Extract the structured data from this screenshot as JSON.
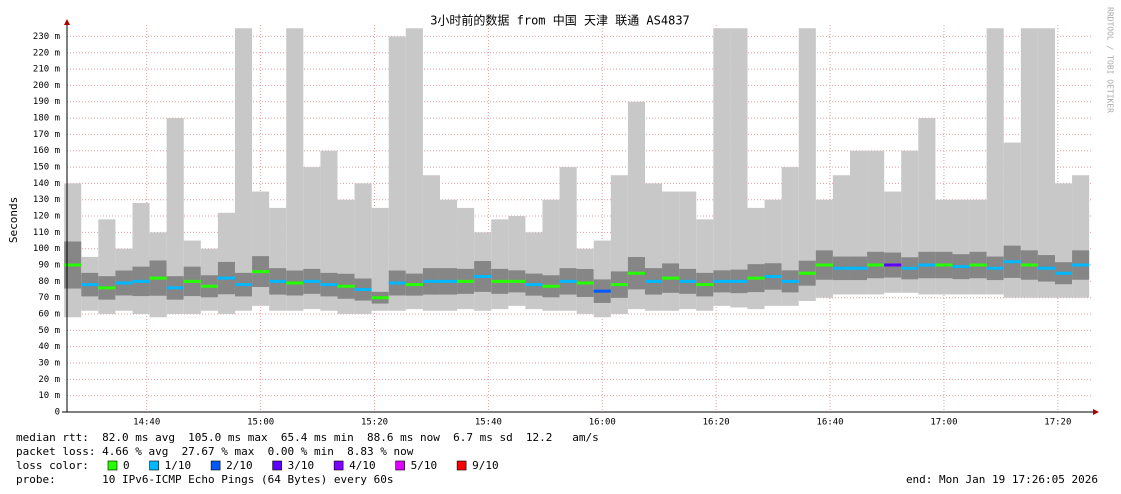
{
  "chart_data": {
    "type": "smoke",
    "title": "3小时前的数据 from 中国 天津 联通 AS4837",
    "y_label": "Seconds",
    "watermark": "RRDTOOL / TOBI OETIKER",
    "ylim": [
      0,
      0.237
    ],
    "yticks": [
      {
        "value": 0,
        "label": "0"
      },
      {
        "value": 0.01,
        "label": "10 m"
      },
      {
        "value": 0.02,
        "label": "20 m"
      },
      {
        "value": 0.03,
        "label": "30 m"
      },
      {
        "value": 0.04,
        "label": "40 m"
      },
      {
        "value": 0.05,
        "label": "50 m"
      },
      {
        "value": 0.06,
        "label": "60 m"
      },
      {
        "value": 0.07,
        "label": "70 m"
      },
      {
        "value": 0.08,
        "label": "80 m"
      },
      {
        "value": 0.09,
        "label": "90 m"
      },
      {
        "value": 0.1,
        "label": "100 m"
      },
      {
        "value": 0.11,
        "label": "110 m"
      },
      {
        "value": 0.12,
        "label": "120 m"
      },
      {
        "value": 0.13,
        "label": "130 m"
      },
      {
        "value": 0.14,
        "label": "140 m"
      },
      {
        "value": 0.15,
        "label": "150 m"
      },
      {
        "value": 0.16,
        "label": "160 m"
      },
      {
        "value": 0.17,
        "label": "170 m"
      },
      {
        "value": 0.18,
        "label": "180 m"
      },
      {
        "value": 0.19,
        "label": "190 m"
      },
      {
        "value": 0.2,
        "label": "200 m"
      },
      {
        "value": 0.21,
        "label": "210 m"
      },
      {
        "value": 0.22,
        "label": "220 m"
      },
      {
        "value": 0.23,
        "label": "230 m"
      }
    ],
    "xlim": [
      "14:26",
      "17:26"
    ],
    "xticks": [
      "14:40",
      "15:00",
      "15:20",
      "15:40",
      "16:00",
      "16:20",
      "16:40",
      "17:00",
      "17:20"
    ],
    "grid": true,
    "x": [
      "14:27",
      "14:30",
      "14:33",
      "14:36",
      "14:39",
      "14:42",
      "14:45",
      "14:48",
      "14:51",
      "14:54",
      "14:57",
      "15:00",
      "15:03",
      "15:06",
      "15:09",
      "15:12",
      "15:15",
      "15:18",
      "15:21",
      "15:24",
      "15:27",
      "15:30",
      "15:33",
      "15:36",
      "15:39",
      "15:42",
      "15:45",
      "15:48",
      "15:51",
      "15:54",
      "15:57",
      "16:00",
      "16:03",
      "16:06",
      "16:09",
      "16:12",
      "16:15",
      "16:18",
      "16:21",
      "16:24",
      "16:27",
      "16:30",
      "16:33",
      "16:36",
      "16:39",
      "16:42",
      "16:45",
      "16:48",
      "16:51",
      "16:54",
      "16:57",
      "17:00",
      "17:03",
      "17:06",
      "17:09",
      "17:12",
      "17:15",
      "17:18",
      "17:21",
      "17:24"
    ],
    "median": [
      0.09,
      0.078,
      0.076,
      0.079,
      0.08,
      0.082,
      0.076,
      0.08,
      0.077,
      0.082,
      0.078,
      0.086,
      0.08,
      0.079,
      0.08,
      0.078,
      0.077,
      0.075,
      0.07,
      0.079,
      0.078,
      0.08,
      0.08,
      0.08,
      0.083,
      0.08,
      0.08,
      0.078,
      0.077,
      0.08,
      0.079,
      0.074,
      0.078,
      0.085,
      0.08,
      0.082,
      0.08,
      0.078,
      0.08,
      0.08,
      0.082,
      0.083,
      0.08,
      0.085,
      0.09,
      0.088,
      0.088,
      0.09,
      0.09,
      0.088,
      0.09,
      0.09,
      0.089,
      0.09,
      0.088,
      0.092,
      0.09,
      0.088,
      0.085,
      0.09
    ],
    "low": [
      0.058,
      0.062,
      0.06,
      0.062,
      0.06,
      0.058,
      0.06,
      0.06,
      0.062,
      0.06,
      0.062,
      0.065,
      0.062,
      0.062,
      0.063,
      0.062,
      0.06,
      0.06,
      0.062,
      0.062,
      0.063,
      0.062,
      0.062,
      0.063,
      0.062,
      0.063,
      0.065,
      0.063,
      0.062,
      0.062,
      0.06,
      0.058,
      0.06,
      0.063,
      0.062,
      0.062,
      0.063,
      0.062,
      0.065,
      0.064,
      0.063,
      0.065,
      0.065,
      0.068,
      0.07,
      0.072,
      0.072,
      0.072,
      0.073,
      0.073,
      0.072,
      0.072,
      0.072,
      0.072,
      0.072,
      0.07,
      0.07,
      0.07,
      0.07,
      0.07
    ],
    "high": [
      0.14,
      0.095,
      0.118,
      0.1,
      0.128,
      0.11,
      0.18,
      0.105,
      0.1,
      0.122,
      0.235,
      0.135,
      0.125,
      0.235,
      0.15,
      0.16,
      0.13,
      0.14,
      0.125,
      0.23,
      0.235,
      0.145,
      0.13,
      0.125,
      0.11,
      0.118,
      0.12,
      0.11,
      0.13,
      0.15,
      0.1,
      0.105,
      0.145,
      0.19,
      0.14,
      0.135,
      0.135,
      0.118,
      0.235,
      0.235,
      0.125,
      0.13,
      0.15,
      0.235,
      0.13,
      0.145,
      0.16,
      0.16,
      0.135,
      0.16,
      0.18,
      0.13,
      0.13,
      0.13,
      0.235,
      0.165,
      0.235,
      0.235,
      0.14,
      0.145
    ],
    "loss": [
      0,
      1,
      0,
      1,
      1,
      0,
      1,
      0,
      0,
      1,
      1,
      0,
      1,
      0,
      1,
      1,
      0,
      1,
      0,
      1,
      0,
      1,
      1,
      0,
      1,
      0,
      0,
      1,
      0,
      1,
      0,
      2,
      0,
      0,
      1,
      0,
      1,
      0,
      1,
      1,
      0,
      1,
      1,
      0,
      0,
      1,
      1,
      0,
      3,
      1,
      1,
      0,
      1,
      0,
      1,
      1,
      0,
      1,
      1,
      1
    ],
    "legend_title": "loss color:",
    "legend": [
      {
        "name": "0",
        "color": "#26ff00"
      },
      {
        "name": "1/10",
        "color": "#00b8ff"
      },
      {
        "name": "2/10",
        "color": "#0059ff"
      },
      {
        "name": "3/10",
        "color": "#5e00ff"
      },
      {
        "name": "4/10",
        "color": "#7e00ff"
      },
      {
        "name": "5/10",
        "color": "#dd00ff"
      },
      {
        "name": "9/10",
        "color": "#ff0000"
      }
    ],
    "stats": [
      "median rtt:  82.0 ms avg  105.0 ms max  65.4 ms min  88.6 ms now  6.7 ms sd  12.2   am/s",
      "packet loss: 4.66 % avg  27.67 % max  0.00 % min  8.83 % now"
    ],
    "probe": "probe:       10 IPv6-ICMP Echo Pings (64 Bytes) every 60s",
    "end": "end: Mon Jan 19 17:26:05 2026"
  }
}
